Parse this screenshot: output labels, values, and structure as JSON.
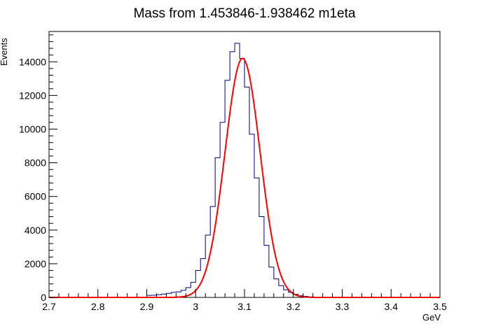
{
  "chart_data": {
    "type": "histogram",
    "title": "Mass from 1.453846-1.938462 m1eta",
    "xlabel": "GeV",
    "ylabel": "Events",
    "xlim": [
      2.7,
      3.5
    ],
    "ylim": [
      0,
      15800
    ],
    "x_ticks": [
      2.7,
      2.8,
      2.9,
      3.0,
      3.1,
      3.2,
      3.3,
      3.4,
      3.5
    ],
    "x_tick_labels": [
      "2.7",
      "2.8",
      "2.9",
      "3",
      "3.1",
      "3.2",
      "3.3",
      "3.4",
      "3.5"
    ],
    "y_ticks": [
      0,
      2000,
      4000,
      6000,
      8000,
      10000,
      12000,
      14000
    ],
    "y_tick_labels": [
      "0",
      "2000",
      "4000",
      "6000",
      "8000",
      "10000",
      "12000",
      "14000"
    ],
    "grid": false,
    "legend": "none",
    "series": [
      {
        "kind": "histogram",
        "color": "#000080",
        "bin_edges": [
          2.9,
          2.91,
          2.92,
          2.93,
          2.94,
          2.95,
          2.96,
          2.97,
          2.98,
          2.99,
          3.0,
          3.01,
          3.02,
          3.03,
          3.04,
          3.05,
          3.06,
          3.07,
          3.08,
          3.09,
          3.1,
          3.11,
          3.12,
          3.13,
          3.14,
          3.15,
          3.16,
          3.17,
          3.18,
          3.19,
          3.2,
          3.21,
          3.22,
          3.23,
          3.24
        ],
        "values": [
          120,
          130,
          160,
          200,
          240,
          300,
          330,
          420,
          580,
          900,
          1600,
          2300,
          3700,
          5400,
          8300,
          10400,
          12900,
          14600,
          15100,
          14200,
          12500,
          9700,
          7100,
          4800,
          3100,
          1800,
          1100,
          700,
          450,
          300,
          180,
          100,
          60,
          30
        ]
      },
      {
        "kind": "fit",
        "color": "#ff0000",
        "model": "gaussian",
        "amplitude": 14200,
        "mean": 3.096,
        "sigma": 0.036,
        "x_range": [
          2.7,
          3.5
        ]
      }
    ]
  }
}
